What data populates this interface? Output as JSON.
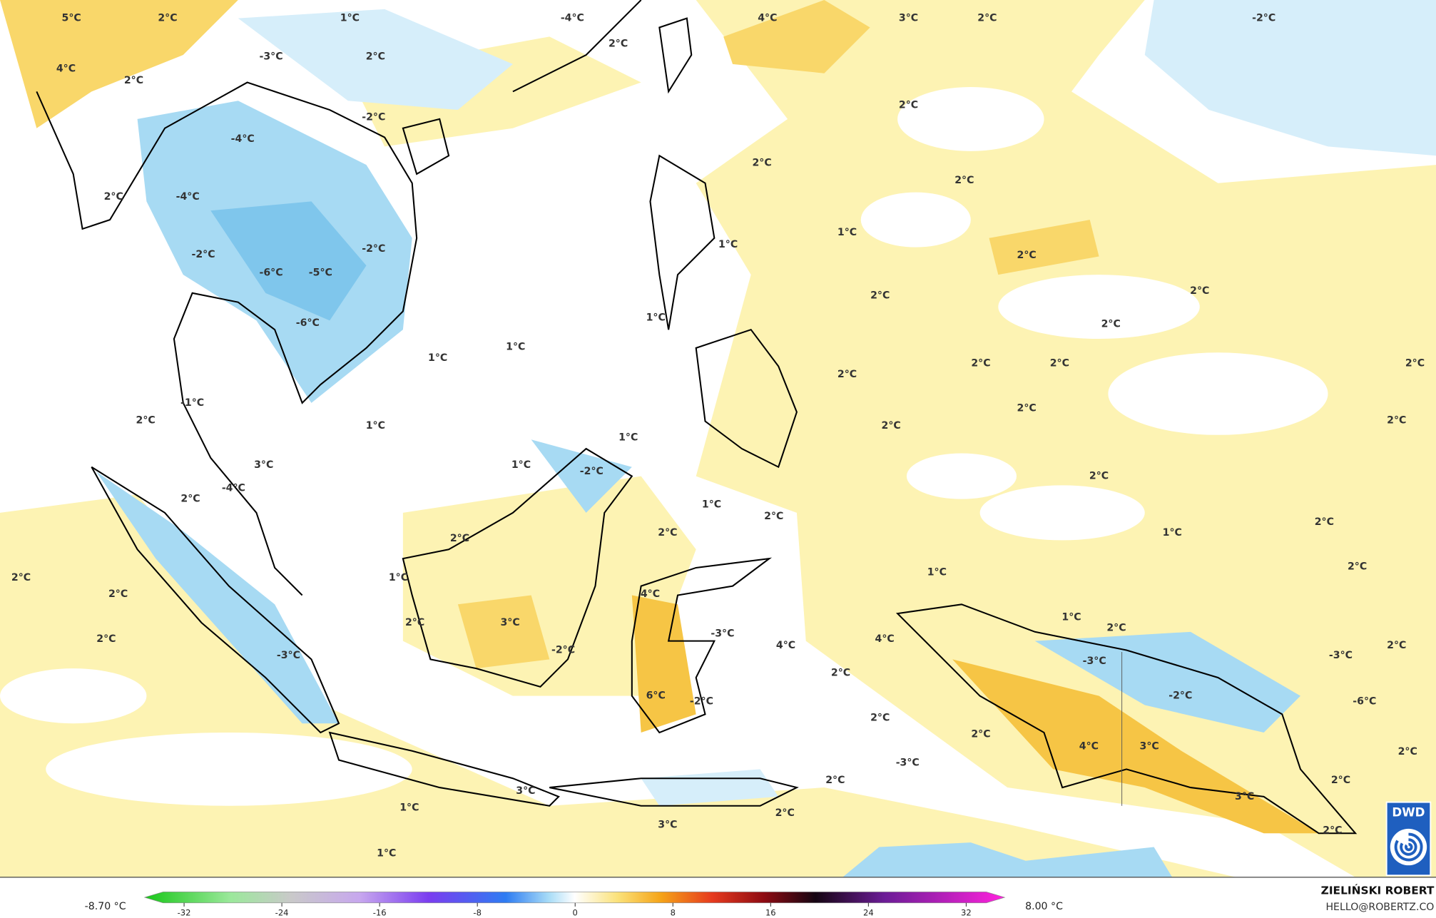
{
  "map": {
    "labels": [
      "5°C",
      "2°C",
      "1°C",
      "-4°C",
      "4°C",
      "3°C",
      "2°C",
      "-2°C",
      "4°C",
      "-3°C",
      "2°C",
      "2°C",
      "2°C",
      "-2°C",
      "2°C",
      "-4°C",
      "2°C",
      "2°C",
      "2°C",
      "-4°C",
      "1°C",
      "1°C",
      "-2°C",
      "-2°C",
      "2°C",
      "-6°C",
      "-5°C",
      "2°C",
      "2°C",
      "1°C",
      "-6°C",
      "2°C",
      "1°C",
      "1°C",
      "2°C",
      "2°C",
      "2°C",
      "2°C",
      "-1°C",
      "2°C",
      "2°C",
      "2°C",
      "1°C",
      "2°C",
      "1°C",
      "3°C",
      "1°C",
      "-2°C",
      "2°C",
      "-4°C",
      "2°C",
      "1°C",
      "2°C",
      "2°C",
      "2°C",
      "1°C",
      "2°C",
      "2°C",
      "1°C",
      "2°C",
      "1°C",
      "2°C",
      "4°C",
      "1°C",
      "3°C",
      "2°C",
      "2°C",
      "-3°C",
      "2°C",
      "4°C",
      "4°C",
      "2°C",
      "-2°C",
      "-3°C",
      "-3°C",
      "-3°C",
      "2°C",
      "6°C",
      "-2°C",
      "-2°C",
      "-6°C",
      "2°C",
      "2°C",
      "4°C",
      "3°C",
      "2°C",
      "-3°C",
      "2°C",
      "2°C",
      "3°C",
      "3°C",
      "1°C",
      "2°C",
      "3°C",
      "2°C",
      "1°C"
    ]
  },
  "colorbar": {
    "min_label": "-8.70 °C",
    "max_label": "8.00 °C",
    "ticks": [
      -32,
      -24,
      -16,
      -8,
      0,
      8,
      16,
      24,
      32
    ]
  },
  "credit": {
    "author": "ZIELIŃSKI ROBERT",
    "contact": "HELLO@ROBERTZ.CO"
  },
  "logo": "DWD"
}
